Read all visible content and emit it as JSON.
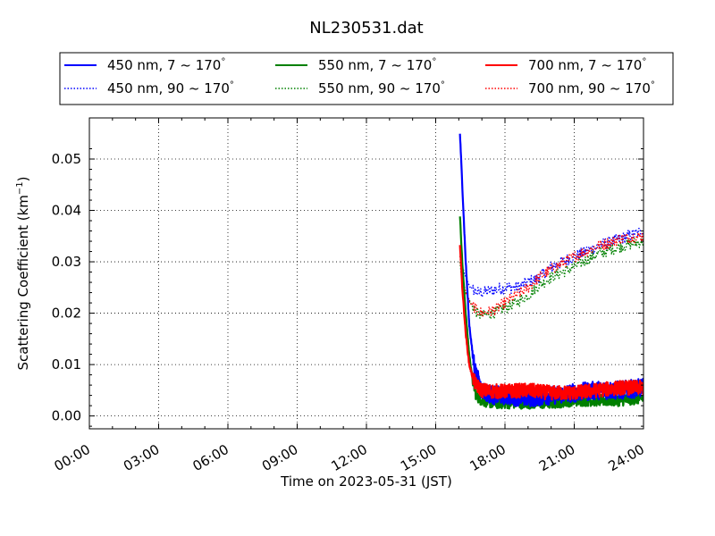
{
  "chart_data": {
    "type": "line",
    "title": "NL230531.dat",
    "xlabel": "Time on 2023-05-31 (JST)",
    "ylabel_main": "Scattering Coefficient (km",
    "ylabel_sup": "−1",
    "ylabel_tail": ")",
    "x_unit": "hours (JST)",
    "xlim": [
      0,
      24
    ],
    "ylim": [
      -0.0025,
      0.058
    ],
    "x_ticks": [
      0,
      3,
      6,
      9,
      12,
      15,
      18,
      21,
      24
    ],
    "x_tick_labels": [
      "00:00",
      "03:00",
      "06:00",
      "09:00",
      "12:00",
      "15:00",
      "18:00",
      "21:00",
      "24:00"
    ],
    "y_ticks": [
      0.0,
      0.01,
      0.02,
      0.03,
      0.04,
      0.05
    ],
    "y_tick_labels": [
      "0.00",
      "0.01",
      "0.02",
      "0.03",
      "0.04",
      "0.05"
    ],
    "grid": true,
    "grid_style": "dotted",
    "legend_position": "top (above plot), 3 columns",
    "colors": {
      "blue": "#0000ff",
      "green": "#008000",
      "red": "#ff0000"
    },
    "series": [
      {
        "name": "450 nm, 7 ~ 170°",
        "label_main": "450 nm, 7 ~ 170",
        "color": "#0000ff",
        "style": "solid",
        "noise": 0.0018,
        "x": [
          16.05,
          16.15,
          16.3,
          16.45,
          16.6,
          16.75,
          17.0,
          17.5,
          18.0,
          19.0,
          20.0,
          21.0,
          22.0,
          23.0,
          24.0
        ],
        "y": [
          0.055,
          0.045,
          0.03,
          0.018,
          0.012,
          0.008,
          0.005,
          0.004,
          0.004,
          0.0035,
          0.004,
          0.0045,
          0.005,
          0.005,
          0.0055
        ]
      },
      {
        "name": "450 nm, 90 ~ 170°",
        "label_main": "450 nm, 90 ~ 170",
        "color": "#0000ff",
        "style": "dotted",
        "noise": 0.0012,
        "x": [
          16.05,
          16.15,
          16.3,
          16.5,
          16.8,
          17.0,
          17.5,
          18.0,
          18.5,
          19.0,
          19.5,
          20.0,
          21.0,
          22.0,
          23.0,
          24.0
        ],
        "y": [
          0.032,
          0.029,
          0.027,
          0.025,
          0.024,
          0.024,
          0.0245,
          0.025,
          0.025,
          0.026,
          0.027,
          0.029,
          0.031,
          0.033,
          0.0345,
          0.036
        ]
      },
      {
        "name": "550 nm, 7 ~ 170°",
        "label_main": "550 nm, 7 ~ 170",
        "color": "#008000",
        "style": "solid",
        "noise": 0.0011,
        "x": [
          16.05,
          16.15,
          16.3,
          16.45,
          16.6,
          16.75,
          17.0,
          17.5,
          18.0,
          19.0,
          20.0,
          21.0,
          22.0,
          23.0,
          24.0
        ],
        "y": [
          0.039,
          0.03,
          0.02,
          0.012,
          0.007,
          0.004,
          0.003,
          0.0025,
          0.0025,
          0.0025,
          0.0025,
          0.003,
          0.003,
          0.003,
          0.0035
        ]
      },
      {
        "name": "550 nm, 90 ~ 170°",
        "label_main": "550 nm, 90 ~ 170",
        "color": "#008000",
        "style": "dotted",
        "noise": 0.0011,
        "x": [
          16.05,
          16.15,
          16.3,
          16.5,
          16.8,
          17.0,
          17.5,
          18.0,
          18.5,
          19.0,
          19.5,
          20.0,
          21.0,
          22.0,
          23.0,
          24.0
        ],
        "y": [
          0.03,
          0.026,
          0.024,
          0.022,
          0.02,
          0.0195,
          0.02,
          0.021,
          0.022,
          0.0235,
          0.0255,
          0.027,
          0.029,
          0.0315,
          0.033,
          0.034
        ]
      },
      {
        "name": "700 nm, 7 ~ 170°",
        "label_main": "700 nm, 7 ~ 170",
        "color": "#ff0000",
        "style": "solid",
        "noise": 0.0014,
        "x": [
          16.05,
          16.15,
          16.3,
          16.45,
          16.6,
          16.75,
          17.0,
          17.5,
          18.0,
          19.0,
          20.0,
          21.0,
          22.0,
          23.0,
          24.0
        ],
        "y": [
          0.0335,
          0.025,
          0.016,
          0.01,
          0.0075,
          0.006,
          0.005,
          0.0048,
          0.0048,
          0.005,
          0.0045,
          0.0045,
          0.005,
          0.0055,
          0.0055
        ]
      },
      {
        "name": "700 nm, 90 ~ 170°",
        "label_main": "700 nm, 90 ~ 170",
        "color": "#ff0000",
        "style": "dotted",
        "noise": 0.0011,
        "x": [
          16.05,
          16.15,
          16.3,
          16.5,
          16.8,
          17.0,
          17.5,
          18.0,
          18.5,
          19.0,
          19.5,
          20.0,
          21.0,
          22.0,
          23.0,
          24.0
        ],
        "y": [
          0.031,
          0.027,
          0.024,
          0.022,
          0.0205,
          0.02,
          0.0205,
          0.022,
          0.0235,
          0.025,
          0.027,
          0.0285,
          0.031,
          0.033,
          0.0345,
          0.035
        ]
      }
    ]
  }
}
